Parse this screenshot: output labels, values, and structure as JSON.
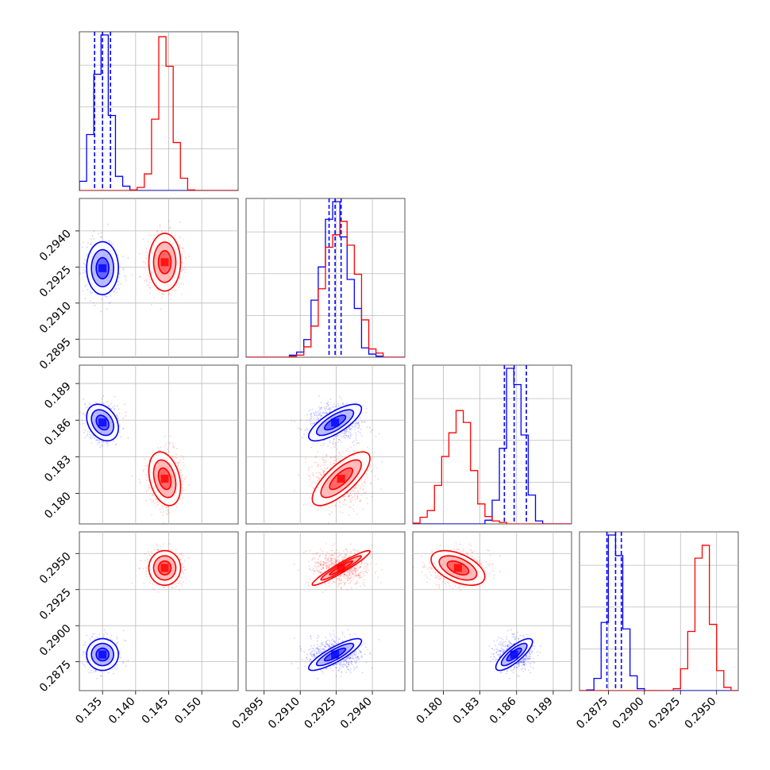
{
  "chart_data": {
    "type": "scatter",
    "plot_kind": "corner",
    "grid": true,
    "colors": {
      "blue": "#0000ff",
      "red": "#ff0000",
      "grid": "#bbbbbb"
    },
    "parameters": [
      {
        "range": [
          0.1315,
          0.1555
        ],
        "ticks": [
          0.135,
          0.14,
          0.145,
          0.15
        ],
        "tick_labels": [
          "0.135",
          "0.140",
          "0.145",
          "0.150"
        ]
      },
      {
        "range": [
          0.28875,
          0.29535
        ],
        "ticks": [
          0.2895,
          0.291,
          0.2925,
          0.294
        ],
        "tick_labels": [
          "0.2895",
          "0.2910",
          "0.2925",
          "0.2940"
        ]
      },
      {
        "range": [
          0.1775,
          0.1905
        ],
        "ticks": [
          0.18,
          0.183,
          0.186,
          0.189
        ],
        "tick_labels": [
          "0.180",
          "0.183",
          "0.186",
          "0.189"
        ]
      },
      {
        "range": [
          0.2855,
          0.2965
        ],
        "ticks": [
          0.2875,
          0.29,
          0.2925,
          0.295
        ],
        "tick_labels": [
          "0.2875",
          "0.2900",
          "0.2925",
          "0.2950"
        ]
      }
    ],
    "series": [
      {
        "color": "blue",
        "mean": [
          0.135,
          0.29245,
          0.1858,
          0.288
        ],
        "std": [
          0.0012,
          0.00055,
          0.00075,
          0.00055
        ],
        "corr": [
          [
            1,
            0,
            -0.3,
            0
          ],
          [
            0,
            1,
            0.75,
            0.85
          ],
          [
            -0.3,
            0.75,
            1,
            0.8
          ],
          [
            0,
            0.85,
            0.8,
            1
          ]
        ],
        "quantile_lines": [
          [
            0.1338,
            0.135,
            0.1362
          ],
          [
            0.2922,
            0.29245,
            0.2927
          ],
          [
            0.185,
            0.1858,
            0.1868
          ],
          [
            0.2874,
            0.288,
            0.2884
          ]
        ]
      },
      {
        "color": "red",
        "mean": [
          0.1444,
          0.2927,
          0.1812,
          0.294
        ],
        "std": [
          0.0012,
          0.0006,
          0.0011,
          0.0006
        ],
        "corr": [
          [
            1,
            0,
            -0.3,
            0
          ],
          [
            0,
            1,
            0.75,
            0.95
          ],
          [
            -0.3,
            0.75,
            1,
            -0.5
          ],
          [
            0,
            0.95,
            -0.5,
            1
          ]
        ],
        "quantile_lines": []
      }
    ]
  }
}
